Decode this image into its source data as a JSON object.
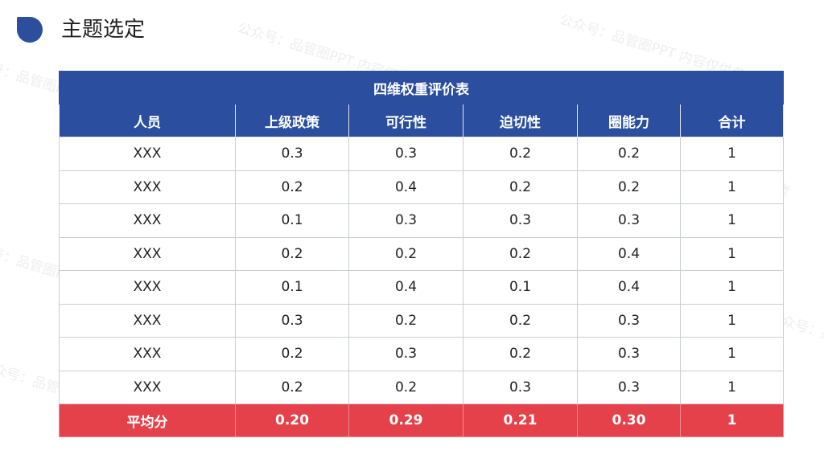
{
  "slide": {
    "title": "主题选定",
    "accent": "#2b4f9e",
    "highlight": "#e5414a",
    "watermark": "公众号：品管圈PPT 内容仅供参考"
  },
  "table": {
    "caption": "四维权重评价表",
    "headers": [
      "人员",
      "上级政策",
      "可行性",
      "迫切性",
      "圈能力",
      "合计"
    ],
    "rows": [
      [
        "XXX",
        "0.3",
        "0.3",
        "0.2",
        "0.2",
        "1"
      ],
      [
        "XXX",
        "0.2",
        "0.4",
        "0.2",
        "0.2",
        "1"
      ],
      [
        "XXX",
        "0.1",
        "0.3",
        "0.3",
        "0.3",
        "1"
      ],
      [
        "XXX",
        "0.2",
        "0.2",
        "0.2",
        "0.4",
        "1"
      ],
      [
        "XXX",
        "0.1",
        "0.4",
        "0.1",
        "0.4",
        "1"
      ],
      [
        "XXX",
        "0.3",
        "0.2",
        "0.2",
        "0.3",
        "1"
      ],
      [
        "XXX",
        "0.2",
        "0.3",
        "0.2",
        "0.3",
        "1"
      ],
      [
        "XXX",
        "0.2",
        "0.2",
        "0.3",
        "0.3",
        "1"
      ]
    ],
    "average": [
      "平均分",
      "0.20",
      "0.29",
      "0.21",
      "0.30",
      "1"
    ]
  }
}
